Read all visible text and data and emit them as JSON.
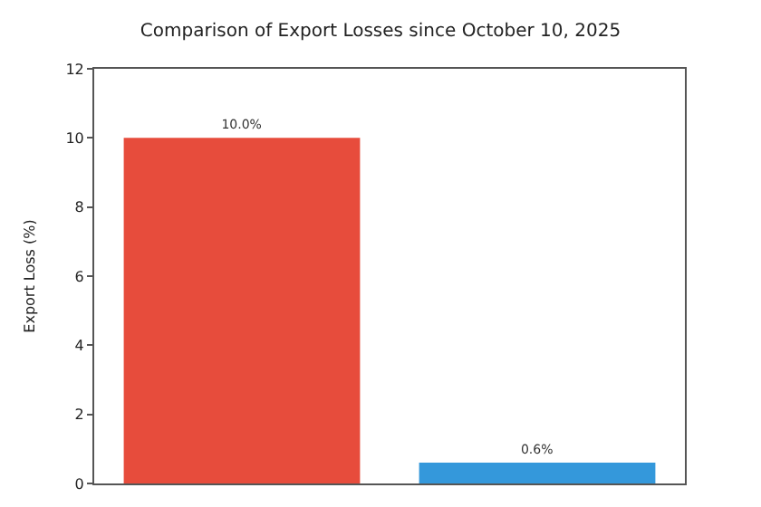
{
  "chart_data": {
    "type": "bar",
    "title": "Comparison of Export Losses since October 10, 2025",
    "ylabel": "Export Loss (%)",
    "categories": [
      null,
      null
    ],
    "values": [
      10.0,
      0.6
    ],
    "colors": [
      "#e74c3c",
      "#3498db"
    ],
    "value_labels": [
      "10.0%",
      "0.6%"
    ],
    "ylim": [
      0,
      12
    ],
    "yticks": [
      0,
      2,
      4,
      6,
      8,
      10,
      12
    ],
    "tick_labels": "y"
  }
}
